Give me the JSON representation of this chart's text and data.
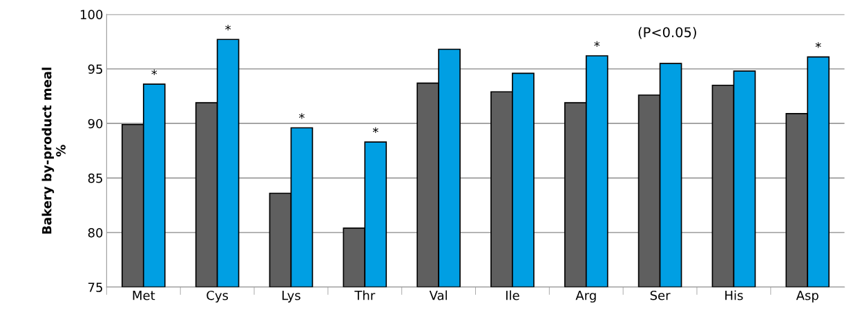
{
  "chart_data": {
    "type": "bar",
    "ylabel": "Bakery by-product meal\n%",
    "categories": [
      "Met",
      "Cys",
      "Lys",
      "Thr",
      "Val",
      "Ile",
      "Arg",
      "Ser",
      "His",
      "Asp"
    ],
    "series": [
      {
        "color": "#5f5f5f",
        "values": [
          89.9,
          91.9,
          83.6,
          80.4,
          93.7,
          92.9,
          91.9,
          92.6,
          93.5,
          90.9
        ]
      },
      {
        "color": "#009fe3",
        "values": [
          93.6,
          97.7,
          89.6,
          88.3,
          96.8,
          94.6,
          96.2,
          95.5,
          94.8,
          96.1
        ]
      }
    ],
    "ylim": [
      75,
      100
    ],
    "yticks": [
      75,
      80,
      85,
      90,
      95,
      100
    ],
    "grid": "y",
    "annotations": [
      {
        "text": "*",
        "x": "Met",
        "y": 93.6
      },
      {
        "text": "*",
        "x": "Cys",
        "y": 97.7
      },
      {
        "text": "*",
        "x": "Lys",
        "y": 89.6
      },
      {
        "text": "*",
        "x": "Thr",
        "y": 88.3
      },
      {
        "text": "*",
        "x": "Arg",
        "y": 96.2
      },
      {
        "text": "*",
        "x": "Asp",
        "y": 96.1
      },
      "(P<0.05)"
    ]
  }
}
